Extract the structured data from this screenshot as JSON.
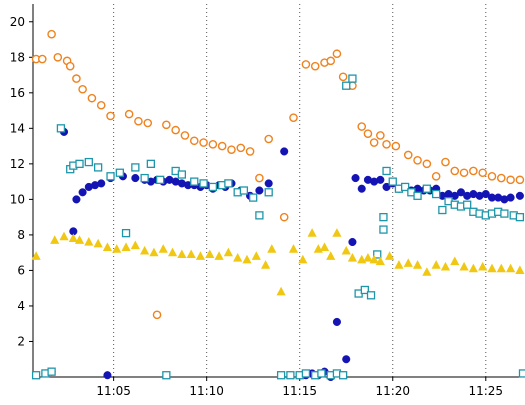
{
  "chart_data": {
    "type": "scatter",
    "title": "",
    "xlabel": "",
    "ylabel": "",
    "ylim": [
      0,
      21
    ],
    "xlim": [
      "11:00:40",
      "11:27:00"
    ],
    "y_ticks": [
      2,
      4,
      6,
      8,
      10,
      12,
      14,
      16,
      18,
      20
    ],
    "x_ticks": [
      "11:05",
      "11:10",
      "11:15",
      "11:20",
      "11:25"
    ],
    "grid": {
      "x": "dotted-vertical",
      "y": "none"
    },
    "legend": "none",
    "series": [
      {
        "marker": "open-circle",
        "color": "#F0821E",
        "points": [
          [
            "11:00:50",
            17.9
          ],
          [
            "11:01:10",
            17.9
          ],
          [
            "11:01:40",
            19.3
          ],
          [
            "11:02:00",
            18.0
          ],
          [
            "11:02:30",
            17.8
          ],
          [
            "11:02:40",
            17.5
          ],
          [
            "11:03:00",
            16.8
          ],
          [
            "11:03:20",
            16.2
          ],
          [
            "11:03:50",
            15.7
          ],
          [
            "11:04:20",
            15.3
          ],
          [
            "11:04:50",
            14.7
          ],
          [
            "11:05:50",
            14.8
          ],
          [
            "11:06:20",
            14.4
          ],
          [
            "11:06:50",
            14.3
          ],
          [
            "11:07:20",
            3.5
          ],
          [
            "11:07:50",
            14.2
          ],
          [
            "11:08:20",
            13.9
          ],
          [
            "11:08:50",
            13.6
          ],
          [
            "11:09:20",
            13.3
          ],
          [
            "11:09:50",
            13.2
          ],
          [
            "11:10:20",
            13.1
          ],
          [
            "11:10:50",
            13.0
          ],
          [
            "11:11:20",
            12.8
          ],
          [
            "11:11:50",
            12.9
          ],
          [
            "11:12:20",
            12.7
          ],
          [
            "11:12:50",
            11.2
          ],
          [
            "11:13:20",
            13.4
          ],
          [
            "11:14:10",
            9.0
          ],
          [
            "11:14:40",
            14.6
          ],
          [
            "11:15:20",
            17.6
          ],
          [
            "11:15:50",
            17.5
          ],
          [
            "11:16:20",
            17.7
          ],
          [
            "11:16:40",
            17.8
          ],
          [
            "11:17:00",
            18.2
          ],
          [
            "11:17:20",
            16.9
          ],
          [
            "11:17:50",
            16.4
          ],
          [
            "11:18:20",
            14.1
          ],
          [
            "11:18:40",
            13.7
          ],
          [
            "11:19:00",
            13.2
          ],
          [
            "11:19:20",
            13.6
          ],
          [
            "11:19:40",
            13.1
          ],
          [
            "11:20:10",
            13.0
          ],
          [
            "11:20:50",
            12.5
          ],
          [
            "11:21:20",
            12.2
          ],
          [
            "11:21:50",
            12.0
          ],
          [
            "11:22:20",
            11.3
          ],
          [
            "11:22:50",
            12.1
          ],
          [
            "11:23:20",
            11.6
          ],
          [
            "11:23:50",
            11.5
          ],
          [
            "11:24:20",
            11.6
          ],
          [
            "11:24:50",
            11.5
          ],
          [
            "11:25:20",
            11.3
          ],
          [
            "11:25:50",
            11.2
          ],
          [
            "11:26:20",
            11.1
          ],
          [
            "11:26:50",
            11.1
          ]
        ]
      },
      {
        "marker": "filled-circle",
        "color": "#1414B4",
        "points": [
          [
            "11:01:20",
            0.2
          ],
          [
            "11:01:40",
            0.3
          ],
          [
            "11:02:20",
            13.8
          ],
          [
            "11:02:50",
            8.2
          ],
          [
            "11:03:00",
            10.0
          ],
          [
            "11:03:20",
            10.4
          ],
          [
            "11:03:40",
            10.7
          ],
          [
            "11:04:00",
            10.8
          ],
          [
            "11:04:20",
            10.9
          ],
          [
            "11:04:40",
            0.1
          ],
          [
            "11:04:50",
            11.2
          ],
          [
            "11:05:30",
            11.3
          ],
          [
            "11:06:10",
            11.2
          ],
          [
            "11:06:40",
            11.1
          ],
          [
            "11:07:00",
            11.0
          ],
          [
            "11:07:20",
            11.1
          ],
          [
            "11:07:40",
            11.0
          ],
          [
            "11:08:00",
            11.1
          ],
          [
            "11:08:20",
            11.0
          ],
          [
            "11:08:40",
            10.9
          ],
          [
            "11:09:00",
            10.8
          ],
          [
            "11:09:20",
            10.8
          ],
          [
            "11:09:40",
            10.7
          ],
          [
            "11:10:00",
            10.8
          ],
          [
            "11:10:20",
            10.6
          ],
          [
            "11:10:40",
            10.8
          ],
          [
            "11:11:00",
            10.7
          ],
          [
            "11:11:20",
            10.9
          ],
          [
            "11:11:50",
            10.5
          ],
          [
            "11:12:20",
            10.2
          ],
          [
            "11:12:50",
            10.5
          ],
          [
            "11:13:20",
            10.9
          ],
          [
            "11:14:10",
            12.7
          ],
          [
            "11:15:20",
            0.1
          ],
          [
            "11:15:40",
            0.2
          ],
          [
            "11:16:00",
            0.1
          ],
          [
            "11:16:20",
            0.3
          ],
          [
            "11:16:40",
            0.0
          ],
          [
            "11:17:00",
            3.1
          ],
          [
            "11:17:30",
            1.0
          ],
          [
            "11:17:50",
            7.6
          ],
          [
            "11:18:00",
            11.2
          ],
          [
            "11:18:20",
            10.6
          ],
          [
            "11:18:40",
            11.1
          ],
          [
            "11:19:00",
            11.0
          ],
          [
            "11:19:20",
            11.1
          ],
          [
            "11:19:40",
            10.7
          ],
          [
            "11:20:00",
            10.9
          ],
          [
            "11:20:20",
            10.6
          ],
          [
            "11:20:40",
            10.7
          ],
          [
            "11:21:00",
            10.5
          ],
          [
            "11:21:20",
            10.6
          ],
          [
            "11:21:40",
            10.5
          ],
          [
            "11:22:00",
            10.5
          ],
          [
            "11:22:20",
            10.6
          ],
          [
            "11:22:40",
            10.2
          ],
          [
            "11:23:00",
            10.3
          ],
          [
            "11:23:20",
            10.2
          ],
          [
            "11:23:40",
            10.4
          ],
          [
            "11:24:00",
            10.2
          ],
          [
            "11:24:20",
            10.3
          ],
          [
            "11:24:40",
            10.2
          ],
          [
            "11:25:00",
            10.3
          ],
          [
            "11:25:20",
            10.1
          ],
          [
            "11:25:40",
            10.1
          ],
          [
            "11:26:00",
            10.0
          ],
          [
            "11:26:20",
            10.1
          ],
          [
            "11:26:50",
            10.2
          ]
        ]
      },
      {
        "marker": "open-square",
        "color": "#1E96AA",
        "points": [
          [
            "11:00:50",
            0.1
          ],
          [
            "11:01:20",
            0.2
          ],
          [
            "11:01:40",
            0.3
          ],
          [
            "11:02:10",
            14.0
          ],
          [
            "11:02:40",
            11.7
          ],
          [
            "11:02:50",
            11.9
          ],
          [
            "11:03:10",
            12.0
          ],
          [
            "11:03:40",
            12.1
          ],
          [
            "11:04:10",
            11.8
          ],
          [
            "11:04:50",
            11.3
          ],
          [
            "11:05:20",
            11.5
          ],
          [
            "11:05:40",
            8.1
          ],
          [
            "11:06:10",
            11.8
          ],
          [
            "11:06:40",
            11.2
          ],
          [
            "11:07:00",
            12.0
          ],
          [
            "11:07:30",
            11.1
          ],
          [
            "11:07:50",
            0.1
          ],
          [
            "11:08:20",
            11.6
          ],
          [
            "11:08:40",
            11.4
          ],
          [
            "11:09:20",
            11.0
          ],
          [
            "11:09:50",
            10.9
          ],
          [
            "11:10:20",
            10.7
          ],
          [
            "11:10:50",
            10.8
          ],
          [
            "11:11:10",
            10.9
          ],
          [
            "11:11:40",
            10.4
          ],
          [
            "11:12:00",
            10.5
          ],
          [
            "11:12:30",
            10.1
          ],
          [
            "11:12:50",
            9.1
          ],
          [
            "11:13:20",
            10.4
          ],
          [
            "11:14:00",
            0.1
          ],
          [
            "11:14:30",
            0.1
          ],
          [
            "11:15:00",
            0.1
          ],
          [
            "11:15:20",
            0.2
          ],
          [
            "11:15:50",
            0.1
          ],
          [
            "11:16:10",
            0.2
          ],
          [
            "11:16:40",
            0.1
          ],
          [
            "11:17:00",
            0.2
          ],
          [
            "11:17:20",
            0.1
          ],
          [
            "11:17:30",
            16.4
          ],
          [
            "11:17:50",
            16.8
          ],
          [
            "11:18:10",
            4.7
          ],
          [
            "11:18:30",
            4.9
          ],
          [
            "11:18:50",
            4.6
          ],
          [
            "11:19:10",
            6.9
          ],
          [
            "11:19:30",
            8.3
          ],
          [
            "11:19:30",
            9.0
          ],
          [
            "11:19:40",
            11.6
          ],
          [
            "11:20:00",
            11.0
          ],
          [
            "11:20:20",
            10.6
          ],
          [
            "11:20:40",
            10.7
          ],
          [
            "11:21:00",
            10.4
          ],
          [
            "11:21:20",
            10.2
          ],
          [
            "11:21:50",
            10.6
          ],
          [
            "11:22:20",
            10.3
          ],
          [
            "11:22:40",
            9.4
          ],
          [
            "11:23:00",
            9.9
          ],
          [
            "11:23:20",
            9.7
          ],
          [
            "11:23:40",
            9.6
          ],
          [
            "11:24:00",
            9.7
          ],
          [
            "11:24:20",
            9.3
          ],
          [
            "11:24:40",
            9.2
          ],
          [
            "11:25:00",
            9.1
          ],
          [
            "11:25:20",
            9.2
          ],
          [
            "11:25:40",
            9.3
          ],
          [
            "11:26:00",
            9.2
          ],
          [
            "11:26:30",
            9.1
          ],
          [
            "11:26:50",
            9.0
          ],
          [
            "11:27:00",
            0.2
          ]
        ]
      },
      {
        "marker": "filled-triangle",
        "color": "#F0C814",
        "points": [
          [
            "11:00:50",
            6.8
          ],
          [
            "11:01:50",
            7.7
          ],
          [
            "11:02:20",
            7.9
          ],
          [
            "11:02:50",
            7.8
          ],
          [
            "11:03:10",
            7.7
          ],
          [
            "11:03:40",
            7.6
          ],
          [
            "11:04:10",
            7.5
          ],
          [
            "11:04:40",
            7.3
          ],
          [
            "11:05:10",
            7.2
          ],
          [
            "11:05:40",
            7.3
          ],
          [
            "11:06:10",
            7.4
          ],
          [
            "11:06:40",
            7.1
          ],
          [
            "11:07:10",
            7.0
          ],
          [
            "11:07:40",
            7.2
          ],
          [
            "11:08:10",
            7.0
          ],
          [
            "11:08:40",
            6.9
          ],
          [
            "11:09:10",
            6.9
          ],
          [
            "11:09:40",
            6.8
          ],
          [
            "11:10:10",
            6.9
          ],
          [
            "11:10:40",
            6.8
          ],
          [
            "11:11:10",
            7.0
          ],
          [
            "11:11:40",
            6.7
          ],
          [
            "11:12:10",
            6.6
          ],
          [
            "11:12:40",
            6.8
          ],
          [
            "11:13:10",
            6.3
          ],
          [
            "11:13:30",
            7.2
          ],
          [
            "11:14:00",
            4.8
          ],
          [
            "11:14:40",
            7.2
          ],
          [
            "11:15:10",
            6.6
          ],
          [
            "11:15:40",
            8.1
          ],
          [
            "11:16:00",
            7.2
          ],
          [
            "11:16:20",
            7.3
          ],
          [
            "11:16:40",
            6.8
          ],
          [
            "11:17:00",
            8.1
          ],
          [
            "11:17:30",
            7.1
          ],
          [
            "11:17:50",
            6.7
          ],
          [
            "11:18:20",
            6.6
          ],
          [
            "11:18:40",
            6.7
          ],
          [
            "11:19:00",
            6.6
          ],
          [
            "11:19:20",
            6.5
          ],
          [
            "11:19:50",
            6.8
          ],
          [
            "11:20:20",
            6.3
          ],
          [
            "11:20:50",
            6.4
          ],
          [
            "11:21:20",
            6.3
          ],
          [
            "11:21:50",
            5.9
          ],
          [
            "11:22:20",
            6.3
          ],
          [
            "11:22:50",
            6.2
          ],
          [
            "11:23:20",
            6.5
          ],
          [
            "11:23:50",
            6.2
          ],
          [
            "11:24:20",
            6.1
          ],
          [
            "11:24:50",
            6.2
          ],
          [
            "11:25:20",
            6.1
          ],
          [
            "11:25:50",
            6.1
          ],
          [
            "11:26:20",
            6.1
          ],
          [
            "11:26:50",
            6.0
          ]
        ]
      }
    ]
  }
}
